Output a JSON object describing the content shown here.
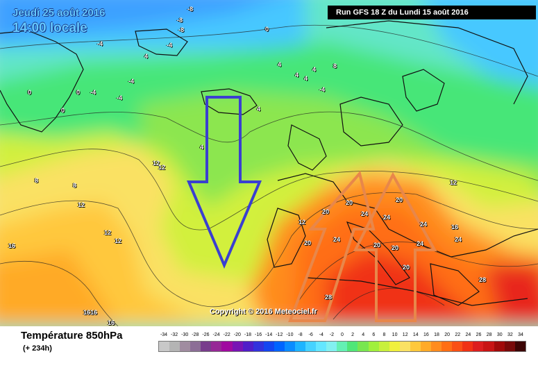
{
  "header": {
    "date": "Jeudi 25 août 2016",
    "time": "14:00 locale",
    "run": "Run GFS 18 Z du Lundi 15 août 2016"
  },
  "map": {
    "copyright": "Copyright © 2016 Meteociel.fr",
    "contour_labels": [
      "-8",
      "-8",
      "-8",
      "-4",
      "0",
      "0",
      "0",
      "0",
      "-4",
      "-4",
      "-4",
      "-4",
      "-4",
      "4",
      "4",
      "4",
      "4",
      "4",
      "4",
      "4",
      "8",
      "8",
      "8",
      "12",
      "12",
      "12",
      "12",
      "12",
      "12",
      "12",
      "16",
      "16",
      "16",
      "16",
      "16",
      "20",
      "20",
      "20",
      "20",
      "20",
      "20",
      "20",
      "24",
      "24",
      "24",
      "24",
      "24",
      "24",
      "28",
      "28"
    ],
    "arrows": [
      {
        "direction": "down",
        "color": "#3a3fd0"
      },
      {
        "direction": "up",
        "color": "#e8874a"
      },
      {
        "direction": "up",
        "color": "#e8874a"
      }
    ]
  },
  "legend": {
    "variable": "Température 850hPa",
    "lead_time": "(+ 234h)",
    "scale_labels": [
      "-34",
      "-32",
      "-30",
      "-28",
      "-26",
      "-24",
      "-22",
      "-20",
      "-18",
      "-16",
      "-14",
      "-12",
      "-10",
      "-8",
      "-6",
      "-4",
      "-2",
      "0",
      "2",
      "4",
      "6",
      "8",
      "10",
      "12",
      "14",
      "16",
      "18",
      "20",
      "22",
      "24",
      "26",
      "28",
      "30",
      "32",
      "34"
    ],
    "scale_colors": [
      "#c8c8c8",
      "#b4b4b4",
      "#a08ca0",
      "#8c6e96",
      "#783c8c",
      "#962896",
      "#a00aa0",
      "#7814b4",
      "#501ec8",
      "#3232dc",
      "#1446f0",
      "#0064ff",
      "#0a8cff",
      "#1eb4ff",
      "#46d2ff",
      "#64e6ff",
      "#82f0f0",
      "#64f0b4",
      "#50e678",
      "#78e650",
      "#a0f03c",
      "#c8f03c",
      "#f0f03c",
      "#fae164",
      "#ffc83c",
      "#ffaa28",
      "#ff8c1e",
      "#ff6e14",
      "#fa5014",
      "#f03214",
      "#dc1e1e",
      "#c81414",
      "#a00a0a",
      "#780a0a",
      "#3c0505"
    ]
  }
}
